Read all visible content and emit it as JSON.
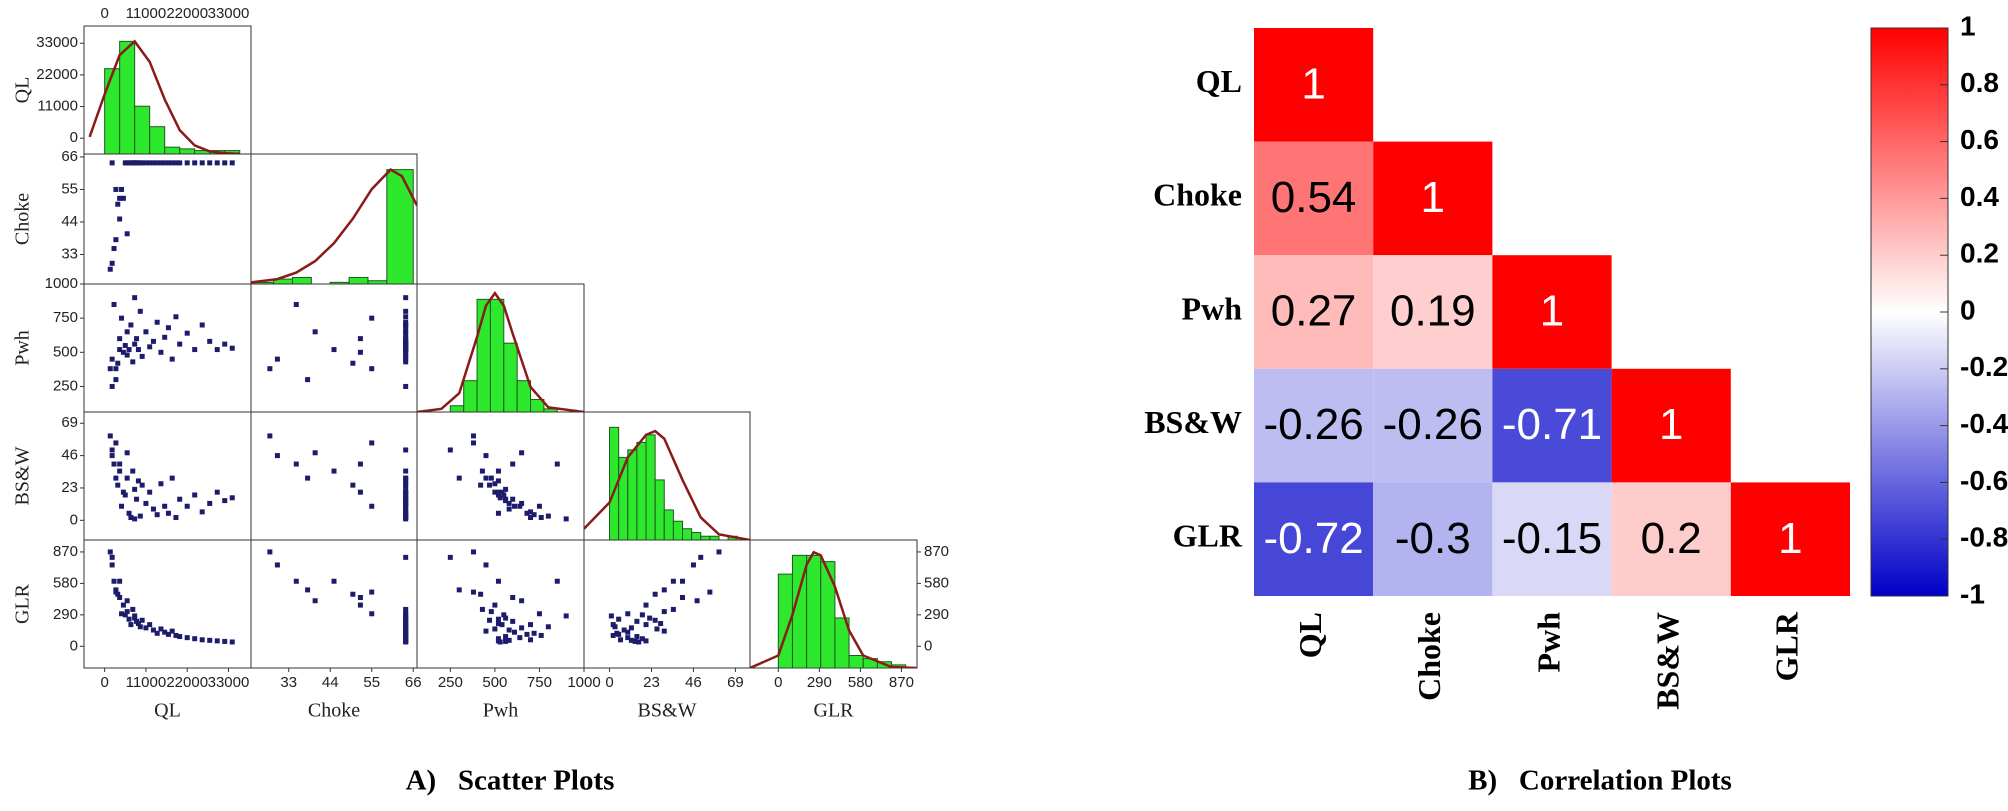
{
  "chart_data": [
    {
      "type": "scatter-matrix",
      "caption": "A)   Scatter Plots",
      "variables": [
        "QL",
        "Choke",
        "Pwh",
        "BS&W",
        "GLR"
      ],
      "lims": [
        [
          -5500,
          39000
        ],
        [
          23,
          67
        ],
        [
          63,
          1000
        ],
        [
          -14,
          77
        ],
        [
          -200,
          980
        ]
      ],
      "ticks": [
        [
          0,
          11000,
          22000,
          33000
        ],
        [
          33,
          44,
          55,
          66
        ],
        [
          250,
          500,
          750,
          1000
        ],
        [
          0,
          23,
          46,
          69
        ],
        [
          0,
          290,
          580,
          870
        ]
      ],
      "hist_color": "#2ee82e",
      "curve_color": "#8b1a1a",
      "point_color": "#1c1c6b",
      "histograms": [
        {
          "bins": [
            0,
            4000,
            8000,
            12000,
            16000,
            20000,
            24000,
            28000,
            32000,
            36000
          ],
          "counts": [
            50,
            66,
            28,
            16,
            4,
            3,
            2,
            2,
            2
          ]
        },
        {
          "bins": [
            24,
            29,
            34,
            39,
            44,
            49,
            54,
            59,
            66
          ],
          "counts": [
            1,
            3,
            4,
            0,
            1,
            4,
            2,
            70
          ]
        },
        {
          "bins": [
            250,
            325,
            400,
            475,
            550,
            625,
            700,
            775,
            850
          ],
          "counts": [
            2,
            10,
            36,
            36,
            22,
            10,
            4,
            1
          ]
        },
        {
          "bins": [
            0,
            5,
            10,
            15,
            20,
            25,
            30,
            35,
            40,
            45,
            50,
            55,
            60,
            65,
            70
          ],
          "counts": [
            30,
            22,
            24,
            26,
            28,
            16,
            8,
            5,
            3,
            2,
            1,
            1,
            0,
            1
          ]
        },
        {
          "bins": [
            0,
            100,
            200,
            300,
            400,
            500,
            600,
            700,
            800,
            900
          ],
          "counts": [
            30,
            36,
            36,
            34,
            16,
            4,
            3,
            2,
            1
          ]
        }
      ],
      "curves": [
        {
          "x": [
            -4000,
            0,
            4000,
            8000,
            12000,
            16000,
            20000,
            24000,
            28000,
            32000,
            36000
          ],
          "y": [
            10,
            35,
            58,
            66,
            54,
            32,
            14,
            5,
            1.5,
            0.5,
            0.1
          ]
        },
        {
          "x": [
            23,
            30,
            35,
            40,
            45,
            50,
            55,
            60,
            63,
            67
          ],
          "y": [
            1,
            3,
            7,
            14,
            25,
            40,
            58,
            70,
            66,
            48
          ]
        },
        {
          "x": [
            63,
            200,
            300,
            400,
            450,
            500,
            550,
            600,
            700,
            800,
            1000
          ],
          "y": [
            0,
            1,
            6,
            24,
            34,
            38,
            34,
            25,
            8,
            1.5,
            0
          ]
        },
        {
          "x": [
            -14,
            0,
            10,
            20,
            25,
            30,
            40,
            50,
            60,
            77
          ],
          "y": [
            3,
            10,
            22,
            28,
            29,
            27,
            16,
            6,
            1.5,
            0
          ]
        },
        {
          "x": [
            -200,
            0,
            100,
            200,
            250,
            300,
            400,
            500,
            600,
            800,
            980
          ],
          "y": [
            0,
            4,
            17,
            33,
            37,
            36,
            26,
            12,
            4,
            0.3,
            0
          ]
        }
      ],
      "observations": [
        [
          1500,
          28,
          380,
          60,
          870
        ],
        [
          2000,
          30,
          450,
          46,
          750
        ],
        [
          2500,
          35,
          850,
          40,
          600
        ],
        [
          3000,
          38,
          300,
          30,
          520
        ],
        [
          3500,
          50,
          420,
          25,
          480
        ],
        [
          4000,
          52,
          600,
          40,
          450
        ],
        [
          4500,
          55,
          750,
          10,
          300
        ],
        [
          5000,
          52,
          500,
          20,
          380
        ],
        [
          5500,
          64,
          550,
          18,
          290
        ],
        [
          6000,
          64,
          480,
          30,
          320
        ],
        [
          6500,
          64,
          520,
          5,
          250
        ],
        [
          7000,
          64,
          700,
          2,
          200
        ],
        [
          7500,
          64,
          430,
          35,
          340
        ],
        [
          8000,
          64,
          560,
          22,
          260
        ],
        [
          8500,
          64,
          600,
          15,
          230
        ],
        [
          9000,
          64,
          520,
          28,
          210
        ],
        [
          9500,
          64,
          800,
          3,
          180
        ],
        [
          10000,
          64,
          470,
          25,
          240
        ],
        [
          11000,
          64,
          650,
          12,
          170
        ],
        [
          12000,
          64,
          540,
          20,
          200
        ],
        [
          13000,
          64,
          580,
          8,
          150
        ],
        [
          14000,
          64,
          720,
          4,
          120
        ],
        [
          15000,
          64,
          500,
          26,
          160
        ],
        [
          16000,
          64,
          610,
          10,
          130
        ],
        [
          17000,
          64,
          680,
          5,
          110
        ],
        [
          18000,
          64,
          450,
          30,
          140
        ],
        [
          19000,
          64,
          760,
          2,
          100
        ],
        [
          20000,
          64,
          560,
          15,
          90
        ],
        [
          22000,
          64,
          640,
          10,
          80
        ],
        [
          24000,
          64,
          520,
          18,
          70
        ],
        [
          26000,
          64,
          700,
          6,
          60
        ],
        [
          28000,
          64,
          580,
          12,
          55
        ],
        [
          30000,
          64,
          520,
          20,
          50
        ],
        [
          32000,
          64,
          560,
          14,
          45
        ],
        [
          34000,
          64,
          530,
          16,
          40
        ],
        [
          6000,
          40,
          650,
          48,
          420
        ],
        [
          3000,
          55,
          380,
          55,
          500
        ],
        [
          4000,
          45,
          520,
          35,
          600
        ],
        [
          8000,
          64,
          900,
          1,
          280
        ],
        [
          2000,
          64,
          250,
          50,
          820
        ]
      ]
    },
    {
      "type": "heatmap",
      "caption": "B)   Correlation Plots",
      "variables": [
        "QL",
        "Choke",
        "Pwh",
        "BS&W",
        "GLR"
      ],
      "values": [
        [
          1
        ],
        [
          0.54,
          1
        ],
        [
          0.27,
          0.19,
          1
        ],
        [
          -0.26,
          -0.26,
          -0.71,
          1
        ],
        [
          -0.72,
          -0.3,
          -0.15,
          0.2,
          1
        ]
      ],
      "colormap": [
        "#0000c8",
        "#ffffff",
        "#ff0000"
      ],
      "zlim": [
        -1,
        1
      ],
      "zticks": [
        1,
        0.8,
        0.6,
        0.4,
        0.2,
        0,
        -0.2,
        -0.4,
        -0.6,
        -0.8,
        -1
      ]
    }
  ]
}
